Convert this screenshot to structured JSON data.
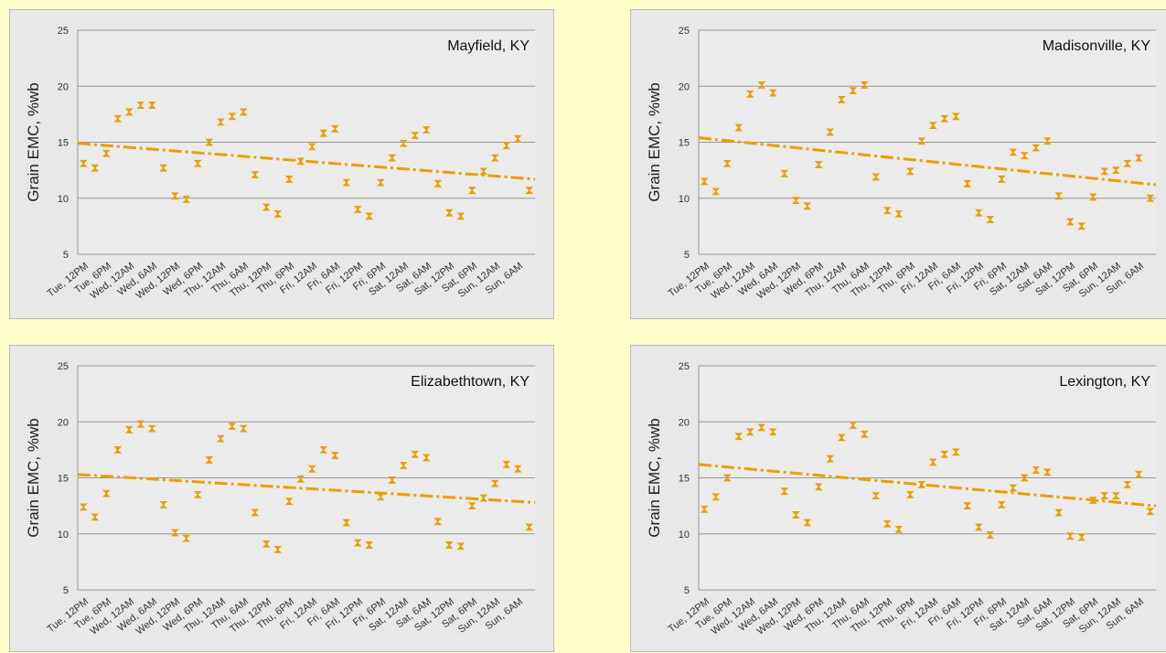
{
  "chart_data": [
    {
      "type": "scatter",
      "title": "Mayfield, KY",
      "ylabel": "Grain EMC, %wb",
      "ylim": [
        5,
        25
      ],
      "yticks": [
        5,
        10,
        15,
        20,
        25
      ],
      "categories": [
        "Tue, 12PM",
        "Tue, 6PM",
        "Wed, 12AM",
        "Wed, 6AM",
        "Wed, 12PM",
        "Wed, 6PM",
        "Thu, 12AM",
        "Thu, 6AM",
        "Thu, 12PM",
        "Thu, 6PM",
        "Fri, 12AM",
        "Fri, 6AM",
        "Fri, 12PM",
        "Fri, 6PM",
        "Sat, 12AM",
        "Sat, 6AM",
        "Sat, 12PM",
        "Sat, 6PM",
        "Sun, 12AM",
        "Sun, 6AM"
      ],
      "values": [
        13.1,
        12.7,
        14.0,
        17.1,
        17.7,
        18.3,
        18.3,
        12.7,
        10.2,
        9.9,
        13.1,
        15.0,
        16.8,
        17.3,
        17.7,
        12.1,
        9.2,
        8.6,
        11.7,
        13.3,
        14.6,
        15.8,
        16.2,
        11.4,
        9.0,
        8.4,
        11.4,
        13.6,
        14.9,
        15.6,
        16.1,
        11.3,
        8.7,
        8.4,
        10.7,
        12.4,
        13.6,
        14.7,
        15.3,
        10.7
      ],
      "trend": [
        14.9,
        11.7
      ],
      "grid": true,
      "color": "#e8a000"
    },
    {
      "type": "scatter",
      "title": "Madisonville, KY",
      "ylabel": "Grain EMC, %wb",
      "ylim": [
        5,
        25
      ],
      "yticks": [
        5,
        10,
        15,
        20,
        25
      ],
      "categories": [
        "Tue, 12PM",
        "Tue, 6PM",
        "Wed, 12AM",
        "Wed, 6AM",
        "Wed, 12PM",
        "Wed, 6PM",
        "Thu, 12AM",
        "Thu, 6AM",
        "Thu, 12PM",
        "Thu, 6PM",
        "Fri, 12AM",
        "Fri, 6AM",
        "Fri, 12PM",
        "Fri, 6PM",
        "Sat, 12AM",
        "Sat, 6AM",
        "Sat, 12PM",
        "Sat, 6PM",
        "Sun, 12AM",
        "Sun, 6AM"
      ],
      "values": [
        11.5,
        10.6,
        13.1,
        16.3,
        19.3,
        20.1,
        19.4,
        12.2,
        9.8,
        9.3,
        13.0,
        15.9,
        18.8,
        19.6,
        20.1,
        11.9,
        8.9,
        8.6,
        12.4,
        15.1,
        16.5,
        17.1,
        17.3,
        11.3,
        8.7,
        8.1,
        11.7,
        14.1,
        13.8,
        14.5,
        15.1,
        10.2,
        7.9,
        7.5,
        10.1,
        12.4,
        12.5,
        13.1,
        13.6,
        10.0
      ],
      "trend": [
        15.4,
        11.2
      ],
      "grid": true,
      "color": "#e8a000"
    },
    {
      "type": "scatter",
      "title": "Elizabethtown, KY",
      "ylabel": "Grain EMC, %wb",
      "ylim": [
        5,
        25
      ],
      "yticks": [
        5,
        10,
        15,
        20,
        25
      ],
      "categories": [
        "Tue, 12PM",
        "Tue, 6PM",
        "Wed, 12AM",
        "Wed, 6AM",
        "Wed, 12PM",
        "Wed, 6PM",
        "Thu, 12AM",
        "Thu, 6AM",
        "Thu, 12PM",
        "Thu, 6PM",
        "Fri, 12AM",
        "Fri, 6AM",
        "Fri, 12PM",
        "Fri, 6PM",
        "Sat, 12AM",
        "Sat, 6AM",
        "Sat, 12PM",
        "Sat, 6PM",
        "Sun, 12AM",
        "Sun, 6AM"
      ],
      "values": [
        12.4,
        11.5,
        13.6,
        17.5,
        19.3,
        19.8,
        19.4,
        12.6,
        10.1,
        9.6,
        13.5,
        16.6,
        18.5,
        19.6,
        19.4,
        11.9,
        9.1,
        8.6,
        12.9,
        14.9,
        15.8,
        17.5,
        17.0,
        11.0,
        9.2,
        9.0,
        13.3,
        14.8,
        16.1,
        17.1,
        16.8,
        11.1,
        9.0,
        8.9,
        12.5,
        13.2,
        14.5,
        16.2,
        15.8,
        10.6
      ],
      "trend": [
        15.3,
        12.8
      ],
      "grid": true,
      "color": "#e8a000"
    },
    {
      "type": "scatter",
      "title": "Lexington, KY",
      "ylabel": "Grain EMC, %wb",
      "ylim": [
        5,
        25
      ],
      "yticks": [
        5,
        10,
        15,
        20,
        25
      ],
      "categories": [
        "Tue, 12PM",
        "Tue, 6PM",
        "Wed, 12AM",
        "Wed, 6AM",
        "Wed, 12PM",
        "Wed, 6PM",
        "Thu, 12AM",
        "Thu, 6AM",
        "Thu, 12PM",
        "Thu, 6PM",
        "Fri, 12AM",
        "Fri, 6AM",
        "Fri, 12PM",
        "Fri, 6PM",
        "Sat, 12AM",
        "Sat, 6AM",
        "Sat, 12PM",
        "Sat, 6PM",
        "Sun, 12AM",
        "Sun, 6AM"
      ],
      "values": [
        12.2,
        13.3,
        15.0,
        18.7,
        19.1,
        19.5,
        19.1,
        13.8,
        11.7,
        11.0,
        14.2,
        16.7,
        18.6,
        19.7,
        18.9,
        13.4,
        10.9,
        10.4,
        13.5,
        14.4,
        16.4,
        17.1,
        17.3,
        12.5,
        10.6,
        9.9,
        12.6,
        14.1,
        15.0,
        15.7,
        15.5,
        11.9,
        9.8,
        9.7,
        13.0,
        13.4,
        13.4,
        14.4,
        15.3,
        12.0
      ],
      "trend": [
        16.2,
        12.5
      ],
      "grid": true,
      "color": "#e8a000"
    }
  ]
}
